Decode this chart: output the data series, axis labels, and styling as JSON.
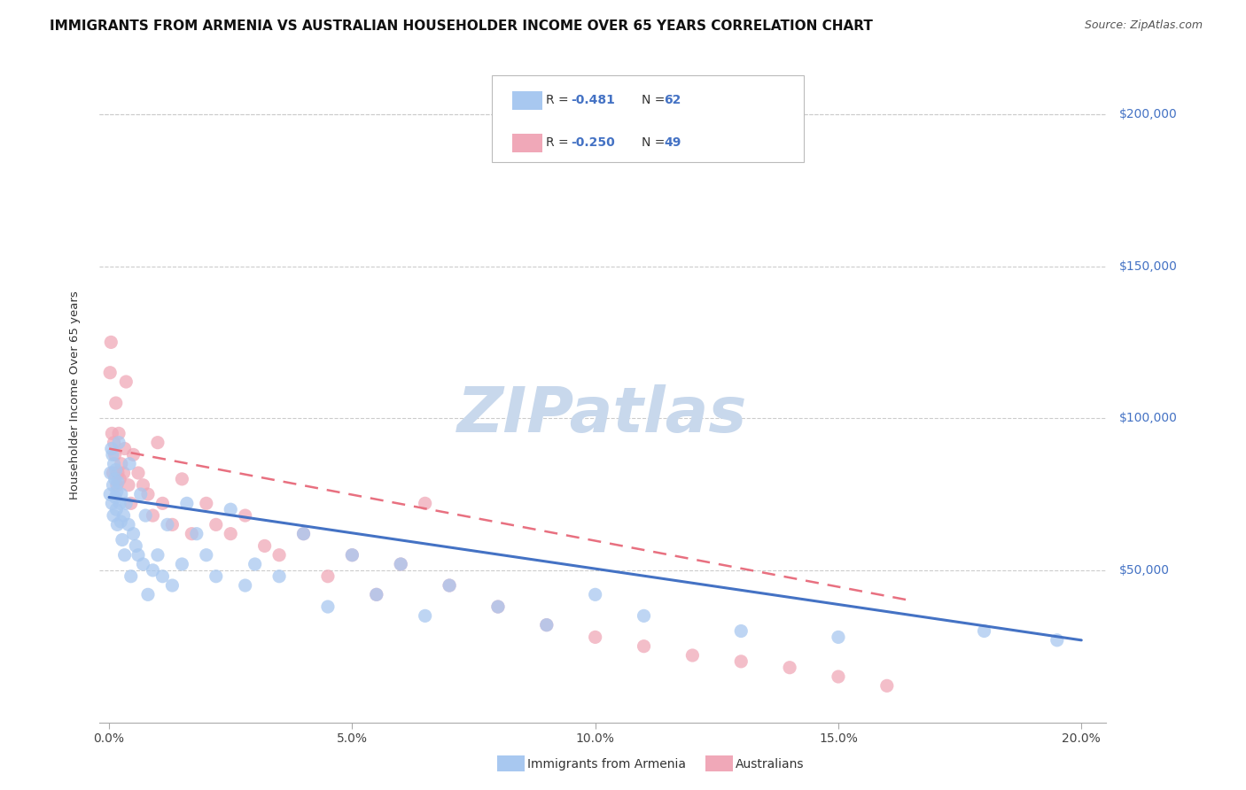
{
  "title": "IMMIGRANTS FROM ARMENIA VS AUSTRALIAN HOUSEHOLDER INCOME OVER 65 YEARS CORRELATION CHART",
  "source": "Source: ZipAtlas.com",
  "ylabel": "Householder Income Over 65 years",
  "watermark": "ZIPatlas",
  "legend_bottom1": "Immigrants from Armenia",
  "legend_bottom2": "Australians",
  "blue_color": "#a8c8f0",
  "pink_color": "#f0a8b8",
  "blue_line_color": "#4472c4",
  "pink_line_color": "#e87080",
  "scatter_blue_x": [
    0.0002,
    0.0003,
    0.0005,
    0.0006,
    0.0007,
    0.0008,
    0.0009,
    0.001,
    0.0012,
    0.0013,
    0.0014,
    0.0015,
    0.0016,
    0.0017,
    0.0018,
    0.002,
    0.0022,
    0.0024,
    0.0025,
    0.0027,
    0.003,
    0.0032,
    0.0035,
    0.004,
    0.0042,
    0.0045,
    0.005,
    0.0055,
    0.006,
    0.0065,
    0.007,
    0.0075,
    0.008,
    0.009,
    0.01,
    0.011,
    0.012,
    0.013,
    0.015,
    0.016,
    0.018,
    0.02,
    0.022,
    0.025,
    0.028,
    0.03,
    0.035,
    0.04,
    0.045,
    0.05,
    0.055,
    0.06,
    0.065,
    0.07,
    0.08,
    0.09,
    0.1,
    0.11,
    0.13,
    0.15,
    0.18,
    0.195
  ],
  "scatter_blue_y": [
    75000,
    82000,
    90000,
    72000,
    88000,
    78000,
    68000,
    85000,
    80000,
    74000,
    83000,
    70000,
    76000,
    65000,
    79000,
    92000,
    72000,
    66000,
    75000,
    60000,
    68000,
    55000,
    72000,
    65000,
    85000,
    48000,
    62000,
    58000,
    55000,
    75000,
    52000,
    68000,
    42000,
    50000,
    55000,
    48000,
    65000,
    45000,
    52000,
    72000,
    62000,
    55000,
    48000,
    70000,
    45000,
    52000,
    48000,
    62000,
    38000,
    55000,
    42000,
    52000,
    35000,
    45000,
    38000,
    32000,
    42000,
    35000,
    30000,
    28000,
    30000,
    27000
  ],
  "scatter_pink_x": [
    0.0002,
    0.0004,
    0.0006,
    0.0008,
    0.001,
    0.0012,
    0.0014,
    0.0016,
    0.0018,
    0.002,
    0.0022,
    0.0025,
    0.003,
    0.0032,
    0.0035,
    0.004,
    0.0045,
    0.005,
    0.006,
    0.007,
    0.008,
    0.009,
    0.01,
    0.011,
    0.013,
    0.015,
    0.017,
    0.02,
    0.022,
    0.025,
    0.028,
    0.032,
    0.035,
    0.04,
    0.045,
    0.05,
    0.055,
    0.06,
    0.065,
    0.07,
    0.08,
    0.09,
    0.1,
    0.11,
    0.12,
    0.13,
    0.14,
    0.15,
    0.16
  ],
  "scatter_pink_y": [
    115000,
    125000,
    95000,
    82000,
    92000,
    88000,
    105000,
    78000,
    82000,
    95000,
    80000,
    85000,
    82000,
    90000,
    112000,
    78000,
    72000,
    88000,
    82000,
    78000,
    75000,
    68000,
    92000,
    72000,
    65000,
    80000,
    62000,
    72000,
    65000,
    62000,
    68000,
    58000,
    55000,
    62000,
    48000,
    55000,
    42000,
    52000,
    72000,
    45000,
    38000,
    32000,
    28000,
    25000,
    22000,
    20000,
    18000,
    15000,
    12000
  ],
  "blue_trend_x": [
    0.0,
    0.2
  ],
  "blue_trend_y": [
    74000,
    27000
  ],
  "pink_trend_x": [
    0.0,
    0.165
  ],
  "pink_trend_y": [
    90000,
    40000
  ],
  "xlim": [
    -0.002,
    0.205
  ],
  "ylim": [
    0,
    215000
  ],
  "xtick_vals": [
    0.0,
    0.05,
    0.1,
    0.15,
    0.2
  ],
  "xtick_labels": [
    "0.0%",
    "5.0%",
    "10.0%",
    "15.0%",
    "20.0%"
  ],
  "ytick_vals": [
    50000,
    100000,
    150000,
    200000
  ],
  "ytick_labels": [
    "$50,000",
    "$100,000",
    "$150,000",
    "$200,000"
  ],
  "grid_color": "#cccccc",
  "background_color": "#ffffff",
  "title_fontsize": 11,
  "source_fontsize": 9,
  "watermark_color": "#c8d8ec",
  "watermark_fontsize": 52,
  "marker_size": 120
}
